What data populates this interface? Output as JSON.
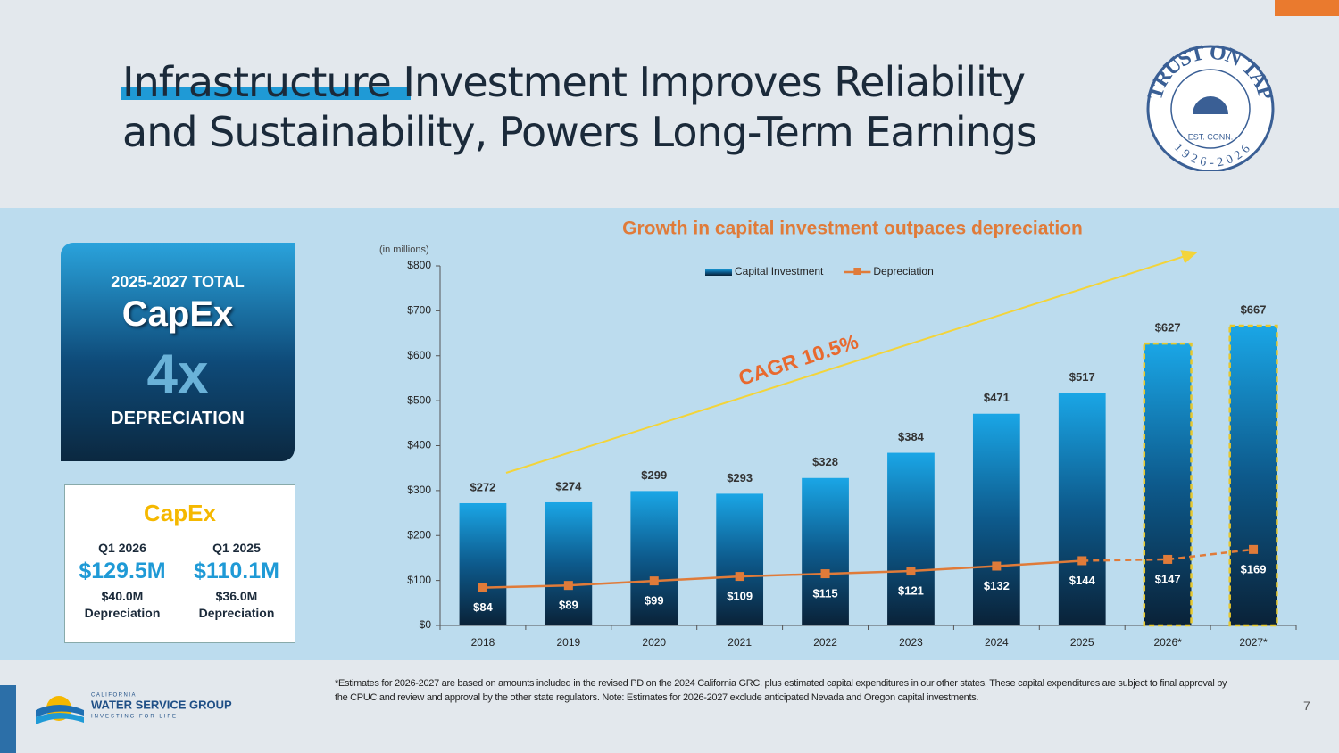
{
  "header": {
    "title": "Infrastructure Investment Improves Reliability and Sustainability, Powers Long-Term Earnings"
  },
  "badge": {
    "text": "TRUST ON TAP",
    "years": "1926-2026",
    "tag": "EST. CONN."
  },
  "capex_total": {
    "period": "2025-2027 TOTAL",
    "label": "CapEx",
    "multiple": "4x",
    "basis": "DEPRECIATION"
  },
  "quarterly": {
    "title": "CapEx",
    "columns": [
      {
        "period": "Q1 2026",
        "capex": "$129.5M",
        "depreciation": "$40.0M",
        "depreciation_label": "Depreciation"
      },
      {
        "period": "Q1 2025",
        "capex": "$110.1M",
        "depreciation": "$36.0M",
        "depreciation_label": "Depreciation"
      }
    ]
  },
  "chart_data": {
    "type": "bar",
    "title": "Growth in capital investment outpaces depreciation",
    "y_axis_note": "(in millions)",
    "annotation": "CAGR 10.5%",
    "categories": [
      "2018",
      "2019",
      "2020",
      "2021",
      "2022",
      "2023",
      "2024",
      "2025",
      "2026*",
      "2027*"
    ],
    "series": [
      {
        "name": "Capital Investment",
        "type": "bar",
        "color": "#1a9ad6",
        "values": [
          272,
          274,
          299,
          293,
          328,
          384,
          471,
          517,
          627,
          667
        ],
        "value_labels": [
          "$272",
          "$274",
          "$299",
          "$293",
          "$328",
          "$384",
          "$471",
          "$517",
          "$627",
          "$667"
        ]
      },
      {
        "name": "Depreciation",
        "type": "line",
        "color": "#e07b39",
        "values": [
          84,
          89,
          99,
          109,
          115,
          121,
          132,
          144,
          147,
          169
        ],
        "value_labels": [
          "$84",
          "$89",
          "$99",
          "$109",
          "$115",
          "$121",
          "$132",
          "$144",
          "$147",
          "$169"
        ]
      }
    ],
    "ylim": [
      0,
      800
    ],
    "yticks": [
      {
        "value": 0,
        "label": "$0"
      },
      {
        "value": 100,
        "label": "$100"
      },
      {
        "value": 200,
        "label": "$200"
      },
      {
        "value": 300,
        "label": "$300"
      },
      {
        "value": 400,
        "label": "$400"
      },
      {
        "value": 500,
        "label": "$500"
      },
      {
        "value": 600,
        "label": "$600"
      },
      {
        "value": 700,
        "label": "$700"
      },
      {
        "value": 800,
        "label": "$800"
      }
    ]
  },
  "footnote": "*Estimates for 2026-2027 are based on amounts included in the revised PD on the 2024 California GRC, plus estimated capital expenditures in our other states. These capital expenditures are subject to final approval by the CPUC and review and approval by the other state regulators. Note: Estimates for 2026-2027 exclude anticipated Nevada and Oregon capital investments.",
  "page_number": "7",
  "logo": {
    "state": "CALIFORNIA",
    "name": "WATER SERVICE GROUP",
    "tagline": "INVESTING FOR LIFE"
  }
}
